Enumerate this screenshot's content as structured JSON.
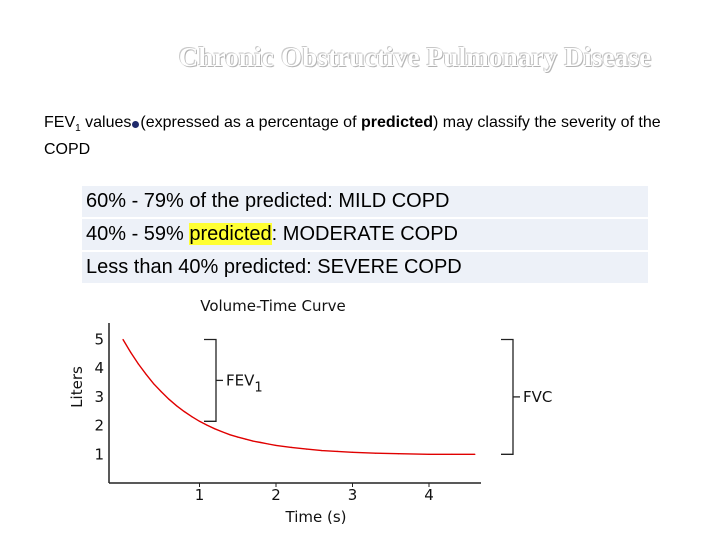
{
  "slide": {
    "title": "Chronic Obstructive Pulmonary Disease"
  },
  "intro": {
    "fev": "FEV",
    "fev_sub": "1",
    "part1": " values",
    "part2": "(expressed as a percentage of ",
    "predicted_word": "predicted",
    "part3": ") may classify the severity of the COPD"
  },
  "severity": [
    {
      "text": "60% - 79% of the predicted: MILD COPD"
    },
    {
      "pre": "40% - 59% ",
      "highlight": "predicted",
      "post": ": MODERATE COPD",
      "highlight_color": "#ffff33"
    },
    {
      "text": "Less than 40% predicted: SEVERE COPD"
    }
  ],
  "chart_data": {
    "type": "line",
    "title": "Volume-Time Curve",
    "xlabel": "Time (s)",
    "ylabel": "Liters",
    "xlim": [
      0,
      4.6
    ],
    "ylim": [
      0,
      5.3
    ],
    "x_ticks": [
      "1",
      "2",
      "3",
      "4"
    ],
    "y_ticks": [
      "1",
      "2",
      "3",
      "4",
      "5"
    ],
    "grid": false,
    "series": [
      {
        "color": "#e00000",
        "points": [
          [
            0.0,
            5.0
          ],
          [
            0.1,
            4.55
          ],
          [
            0.2,
            4.15
          ],
          [
            0.3,
            3.79
          ],
          [
            0.4,
            3.46
          ],
          [
            0.5,
            3.18
          ],
          [
            0.6,
            2.92
          ],
          [
            0.7,
            2.69
          ],
          [
            0.8,
            2.49
          ],
          [
            0.9,
            2.31
          ],
          [
            1.0,
            2.15
          ],
          [
            1.1,
            2.01
          ],
          [
            1.2,
            1.89
          ],
          [
            1.3,
            1.78
          ],
          [
            1.4,
            1.68
          ],
          [
            1.5,
            1.6
          ],
          [
            1.6,
            1.53
          ],
          [
            1.7,
            1.46
          ],
          [
            1.8,
            1.41
          ],
          [
            1.9,
            1.36
          ],
          [
            2.0,
            1.31
          ],
          [
            2.2,
            1.24
          ],
          [
            2.4,
            1.18
          ],
          [
            2.6,
            1.13
          ],
          [
            2.8,
            1.1
          ],
          [
            3.0,
            1.07
          ],
          [
            3.3,
            1.04
          ],
          [
            3.6,
            1.02
          ],
          [
            4.0,
            1.0
          ],
          [
            4.3,
            1.0
          ],
          [
            4.6,
            1.0
          ]
        ]
      }
    ],
    "annotations": [
      {
        "label": "FEV",
        "sub": "1",
        "from_y": 5.0,
        "to_y": 2.15
      },
      {
        "label": "FVC",
        "from_y": 5.0,
        "to_y": 1.0
      }
    ]
  }
}
